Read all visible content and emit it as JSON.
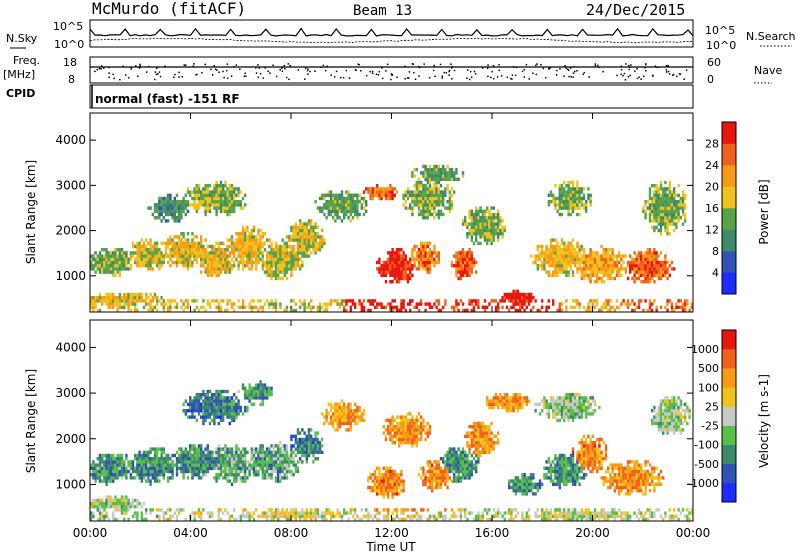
{
  "header": {
    "station": "McMurdo (fitACF)",
    "beam": "Beam 13",
    "date": "24/Dec/2015"
  },
  "left_labels": {
    "nsky": "N.Sky",
    "freq": "Freq.",
    "mhz": "[MHz]",
    "cpid": "CPID"
  },
  "right_labels": {
    "nsearch": "N.Search",
    "nave": "Nave"
  },
  "noise_panel": {
    "left_ticks": [
      "10^5",
      "10^0"
    ],
    "right_ticks": [
      "10^5",
      "10^0"
    ]
  },
  "freq_panel": {
    "left_ticks": [
      "18",
      "8"
    ],
    "right_ticks": [
      "60",
      "0"
    ]
  },
  "cpid_text": "normal (fast) -151 RF",
  "chart_data": [
    {
      "type": "heatmap",
      "panel": "power",
      "ylabel": "Slant Range [km]",
      "yticks": [
        "1000",
        "2000",
        "3000",
        "4000"
      ],
      "ylim": [
        200,
        4600
      ],
      "xlim_hours": [
        0,
        24
      ],
      "colorbar_label": "Power [dB]",
      "colorbar_ticks": [
        "4",
        "8",
        "12",
        "16",
        "20",
        "24",
        "28"
      ],
      "colorbar_colors": [
        "#1e2cff",
        "#2f52b4",
        "#3d8a6a",
        "#58a24a",
        "#f1c21b",
        "#f79b16",
        "#f0621c",
        "#e8160e"
      ],
      "blobs": [
        {
          "t": 0.9,
          "r": 1300,
          "dt": 1.2,
          "dr": 350,
          "v": 0.45
        },
        {
          "t": 2.3,
          "r": 1450,
          "dt": 1.1,
          "dr": 400,
          "v": 0.55
        },
        {
          "t": 3.8,
          "r": 1550,
          "dt": 1.2,
          "dr": 450,
          "v": 0.6
        },
        {
          "t": 5.0,
          "r": 1350,
          "dt": 1.0,
          "dr": 450,
          "v": 0.6
        },
        {
          "t": 6.3,
          "r": 1600,
          "dt": 1.1,
          "dr": 550,
          "v": 0.6
        },
        {
          "t": 7.6,
          "r": 1350,
          "dt": 1.1,
          "dr": 500,
          "v": 0.55
        },
        {
          "t": 8.6,
          "r": 1800,
          "dt": 0.9,
          "dr": 500,
          "v": 0.55
        },
        {
          "t": 5.0,
          "r": 2700,
          "dt": 1.5,
          "dr": 450,
          "v": 0.45
        },
        {
          "t": 3.2,
          "r": 2500,
          "dt": 1.0,
          "dr": 350,
          "v": 0.35
        },
        {
          "t": 10.0,
          "r": 2550,
          "dt": 1.2,
          "dr": 400,
          "v": 0.4
        },
        {
          "t": 11.6,
          "r": 2850,
          "dt": 0.8,
          "dr": 200,
          "v": 0.8
        },
        {
          "t": 12.2,
          "r": 1200,
          "dt": 0.9,
          "dr": 450,
          "v": 0.95
        },
        {
          "t": 13.3,
          "r": 1400,
          "dt": 0.7,
          "dr": 400,
          "v": 0.75
        },
        {
          "t": 13.5,
          "r": 2700,
          "dt": 1.2,
          "dr": 500,
          "v": 0.45
        },
        {
          "t": 14.9,
          "r": 1250,
          "dt": 0.6,
          "dr": 400,
          "v": 0.85
        },
        {
          "t": 15.7,
          "r": 2100,
          "dt": 1.0,
          "dr": 500,
          "v": 0.45
        },
        {
          "t": 17.0,
          "r": 500,
          "dt": 0.9,
          "dr": 200,
          "v": 0.95
        },
        {
          "t": 18.7,
          "r": 1400,
          "dt": 1.3,
          "dr": 500,
          "v": 0.6
        },
        {
          "t": 20.3,
          "r": 1250,
          "dt": 1.3,
          "dr": 450,
          "v": 0.65
        },
        {
          "t": 22.2,
          "r": 1200,
          "dt": 1.2,
          "dr": 450,
          "v": 0.8
        },
        {
          "t": 22.9,
          "r": 2500,
          "dt": 1.0,
          "dr": 700,
          "v": 0.45
        },
        {
          "t": 19.1,
          "r": 2700,
          "dt": 1.0,
          "dr": 450,
          "v": 0.45
        },
        {
          "t": 1.2,
          "r": 480,
          "dt": 2.0,
          "dr": 200,
          "v": 0.6
        },
        {
          "t": 13.8,
          "r": 3250,
          "dt": 1.2,
          "dr": 220,
          "v": 0.4
        }
      ]
    },
    {
      "type": "heatmap",
      "panel": "velocity",
      "ylabel": "Slant Range [km]",
      "yticks": [
        "1000",
        "2000",
        "3000",
        "4000"
      ],
      "ylim": [
        200,
        4600
      ],
      "xlim_hours": [
        0,
        24
      ],
      "xticks": [
        "00:00",
        "04:00",
        "08:00",
        "12:00",
        "16:00",
        "20:00",
        "00:00"
      ],
      "xlabel": "Time UT",
      "colorbar_label": "Velocity [m s-1]",
      "colorbar_ticks": [
        "1000",
        "500",
        "100",
        "25",
        "-25",
        "-100",
        "-500",
        "-1000"
      ],
      "colorbar_colors": [
        "#1e2cff",
        "#2f52b4",
        "#3d8a6a",
        "#58c04a",
        "#c8c8c8",
        "#f1c21b",
        "#f79b16",
        "#f0621c",
        "#e8160e"
      ],
      "blobs": [
        {
          "t": 0.9,
          "r": 1350,
          "dt": 1.2,
          "dr": 400,
          "v": 0.3
        },
        {
          "t": 2.6,
          "r": 1400,
          "dt": 1.2,
          "dr": 450,
          "v": 0.3
        },
        {
          "t": 4.2,
          "r": 1500,
          "dt": 1.2,
          "dr": 450,
          "v": 0.3
        },
        {
          "t": 5.6,
          "r": 1450,
          "dt": 1.2,
          "dr": 500,
          "v": 0.35
        },
        {
          "t": 7.3,
          "r": 1500,
          "dt": 1.3,
          "dr": 500,
          "v": 0.35
        },
        {
          "t": 8.6,
          "r": 1850,
          "dt": 0.8,
          "dr": 450,
          "v": 0.25
        },
        {
          "t": 5.0,
          "r": 2700,
          "dt": 1.5,
          "dr": 450,
          "v": 0.25
        },
        {
          "t": 6.6,
          "r": 3000,
          "dt": 0.8,
          "dr": 300,
          "v": 0.3
        },
        {
          "t": 10.1,
          "r": 2500,
          "dt": 1.0,
          "dr": 400,
          "v": 0.7
        },
        {
          "t": 11.8,
          "r": 1050,
          "dt": 0.9,
          "dr": 400,
          "v": 0.75
        },
        {
          "t": 12.6,
          "r": 2200,
          "dt": 1.1,
          "dr": 450,
          "v": 0.72
        },
        {
          "t": 13.8,
          "r": 1200,
          "dt": 0.8,
          "dr": 400,
          "v": 0.75
        },
        {
          "t": 14.7,
          "r": 1450,
          "dt": 0.9,
          "dr": 450,
          "v": 0.3
        },
        {
          "t": 15.6,
          "r": 2000,
          "dt": 0.8,
          "dr": 450,
          "v": 0.72
        },
        {
          "t": 17.3,
          "r": 1000,
          "dt": 0.8,
          "dr": 300,
          "v": 0.3
        },
        {
          "t": 18.9,
          "r": 1300,
          "dt": 1.0,
          "dr": 450,
          "v": 0.3
        },
        {
          "t": 19.9,
          "r": 1650,
          "dt": 0.8,
          "dr": 500,
          "v": 0.75
        },
        {
          "t": 21.6,
          "r": 1150,
          "dt": 1.4,
          "dr": 450,
          "v": 0.72
        },
        {
          "t": 23.1,
          "r": 2500,
          "dt": 0.9,
          "dr": 500,
          "v": 0.45
        },
        {
          "t": 19.0,
          "r": 2700,
          "dt": 1.5,
          "dr": 350,
          "v": 0.45
        },
        {
          "t": 1.0,
          "r": 580,
          "dt": 1.5,
          "dr": 180,
          "v": 0.45
        },
        {
          "t": 8.0,
          "r": 330,
          "dt": 2.5,
          "dr": 120,
          "v": 0.55
        },
        {
          "t": 20.0,
          "r": 330,
          "dt": 3.0,
          "dr": 120,
          "v": 0.5
        },
        {
          "t": 16.6,
          "r": 2800,
          "dt": 1.0,
          "dr": 250,
          "v": 0.7
        }
      ]
    }
  ],
  "x_axis": {
    "ticks": [
      "00:00",
      "04:00",
      "08:00",
      "12:00",
      "16:00",
      "20:00",
      "00:00"
    ],
    "label": "Time UT"
  }
}
